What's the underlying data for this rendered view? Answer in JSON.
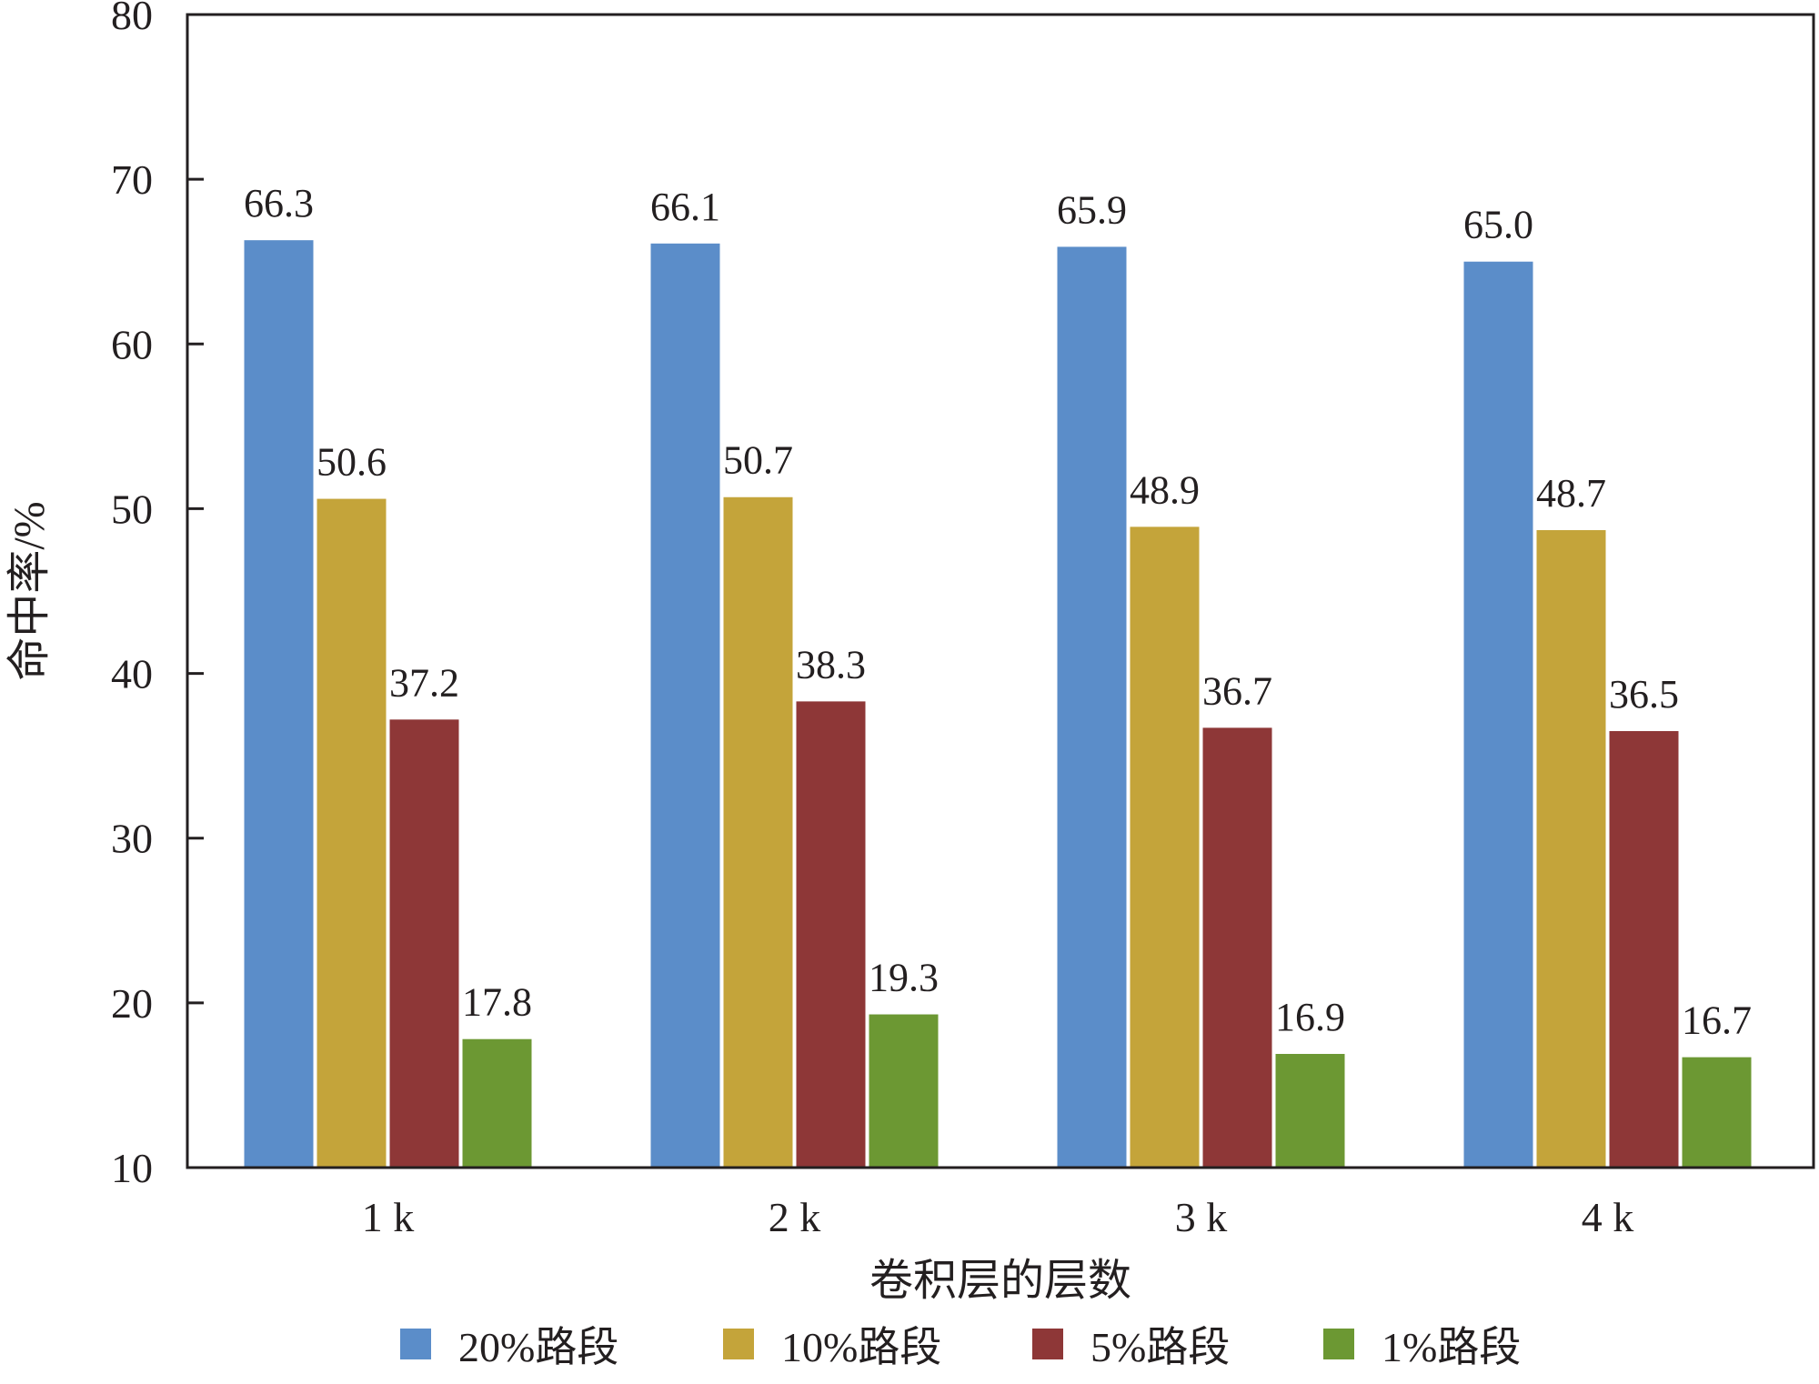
{
  "chart_data": {
    "type": "bar",
    "categories": [
      "1 k",
      "2 k",
      "3 k",
      "4 k"
    ],
    "series": [
      {
        "name": "20%路段",
        "color": "#5b8dc9",
        "values": [
          66.3,
          66.1,
          65.9,
          65.0
        ]
      },
      {
        "name": "10%路段",
        "color": "#c4a43a",
        "values": [
          50.6,
          50.7,
          48.9,
          48.7
        ]
      },
      {
        "name": "5%路段",
        "color": "#8e3737",
        "values": [
          37.2,
          38.3,
          36.7,
          36.5
        ]
      },
      {
        "name": "1%路段",
        "color": "#6c9833",
        "values": [
          17.8,
          19.3,
          16.9,
          16.7
        ]
      }
    ],
    "xlabel": "卷积层的层数",
    "ylabel": "命中率/%",
    "ylim": [
      10,
      80
    ],
    "yticks": [
      10,
      20,
      30,
      40,
      50,
      60,
      70,
      80
    ],
    "data_labels": true,
    "grid": false,
    "legend_position": "bottom"
  }
}
